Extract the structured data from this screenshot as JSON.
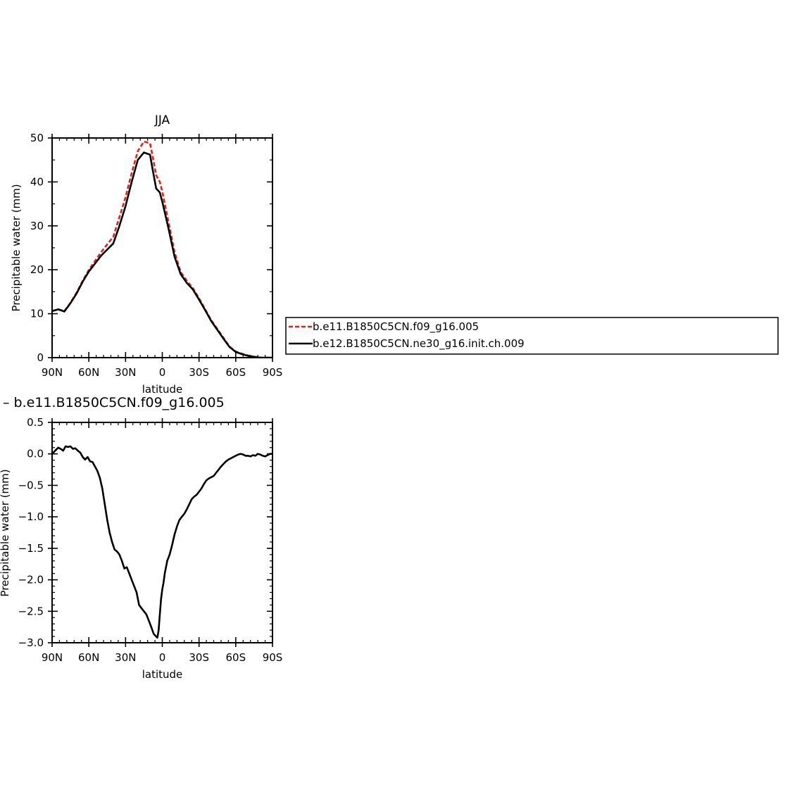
{
  "chart_data": [
    {
      "type": "line",
      "title": "JJA",
      "xlabel": "latitude",
      "ylabel": "Precipitable water (mm)",
      "xlim": [
        90,
        -90
      ],
      "ylim": [
        0,
        50
      ],
      "x_tick_labels": [
        "90N",
        "60N",
        "30N",
        "0",
        "30S",
        "60S",
        "90S"
      ],
      "x_tick_values": [
        90,
        60,
        30,
        0,
        -30,
        -60,
        -90
      ],
      "y_tick_labels": [
        "0",
        "10",
        "20",
        "30",
        "40",
        "50"
      ],
      "y_tick_values": [
        0,
        10,
        20,
        30,
        40,
        50
      ],
      "legend": "right",
      "series": [
        {
          "name": "b.e11.B1850C5CN.f09_g16.005",
          "color": "#e3201b",
          "dash": true,
          "x": [
            90,
            85,
            80,
            75,
            70,
            65,
            60,
            55,
            50,
            45,
            40,
            35,
            30,
            25,
            20,
            15,
            10,
            8,
            5,
            2,
            0,
            -5,
            -10,
            -15,
            -20,
            -25,
            -30,
            -35,
            -40,
            -45,
            -50,
            -55,
            -60,
            -65,
            -70,
            -75,
            -80,
            -85,
            -90
          ],
          "values": [
            10.6,
            11.0,
            10.6,
            12.5,
            14.8,
            17.5,
            20.0,
            22.0,
            24.0,
            25.8,
            27.5,
            32.0,
            36.5,
            42.0,
            47.0,
            49.2,
            48.8,
            46.0,
            41.5,
            40.0,
            37.8,
            31.0,
            24.0,
            19.5,
            17.5,
            15.8,
            13.5,
            11.0,
            8.5,
            6.5,
            4.5,
            2.5,
            1.4,
            0.9,
            0.5,
            0.2,
            0.0,
            0.0,
            0.0
          ]
        },
        {
          "name": "b.e12.B1850C5CN.ne30_g16.init.ch.009",
          "color": "#000000",
          "dash": false,
          "x": [
            90,
            85,
            80,
            75,
            70,
            65,
            60,
            55,
            50,
            45,
            40,
            35,
            30,
            25,
            20,
            15,
            10,
            8,
            5,
            2,
            0,
            -5,
            -10,
            -15,
            -20,
            -25,
            -30,
            -35,
            -40,
            -45,
            -50,
            -55,
            -60,
            -65,
            -70,
            -75,
            -80,
            -85,
            -90
          ],
          "values": [
            10.6,
            11.0,
            10.5,
            12.4,
            14.6,
            17.3,
            19.6,
            21.4,
            23.2,
            24.6,
            26.0,
            30.0,
            34.5,
            40.0,
            45.0,
            46.7,
            46.2,
            43.0,
            38.5,
            37.6,
            35.5,
            29.5,
            23.0,
            19.0,
            17.0,
            15.5,
            13.2,
            10.8,
            8.3,
            6.3,
            4.3,
            2.4,
            1.3,
            0.8,
            0.4,
            0.2,
            0.0,
            0.0,
            0.0
          ]
        }
      ]
    },
    {
      "type": "line",
      "title": "b.e11.B1850C5CN.f09_g16.005",
      "xlabel": "latitude",
      "ylabel": "Precipitable water (mm)",
      "xlim": [
        90,
        -90
      ],
      "ylim": [
        -3.0,
        0.5
      ],
      "x_tick_labels": [
        "90N",
        "60N",
        "30N",
        "0",
        "30S",
        "60S",
        "90S"
      ],
      "x_tick_values": [
        90,
        60,
        30,
        0,
        -30,
        -60,
        -90
      ],
      "y_tick_labels": [
        "0.5",
        "0.0",
        "−0.5",
        "−1.0",
        "−1.5",
        "−2.0",
        "−2.5",
        "−3.0"
      ],
      "y_tick_values": [
        0.5,
        0.0,
        -0.5,
        -1.0,
        -1.5,
        -2.0,
        -2.5,
        -3.0
      ],
      "series": [
        {
          "color": "#000000",
          "dash": false,
          "x": [
            90,
            87,
            85,
            83,
            81,
            79,
            77,
            75,
            73,
            71,
            69,
            67,
            65,
            63,
            61,
            59,
            57,
            55,
            53,
            51,
            49,
            47,
            45,
            43,
            41,
            39,
            37,
            35,
            33,
            31,
            29,
            27,
            25,
            23,
            21,
            19,
            17,
            15,
            13,
            11,
            9,
            7,
            5,
            4,
            3,
            2,
            1,
            0,
            -1,
            -2,
            -4,
            -6,
            -8,
            -10,
            -12,
            -14,
            -16,
            -18,
            -20,
            -22,
            -24,
            -26,
            -28,
            -30,
            -32,
            -34,
            -36,
            -38,
            -40,
            -42,
            -44,
            -46,
            -48,
            -50,
            -52,
            -54,
            -56,
            -58,
            -60,
            -62,
            -64,
            -66,
            -68,
            -70,
            -72,
            -74,
            -76,
            -78,
            -80,
            -82,
            -84,
            -86,
            -88,
            -90
          ],
          "values": [
            0.0,
            0.06,
            0.1,
            0.08,
            0.05,
            0.12,
            0.11,
            0.12,
            0.08,
            0.09,
            0.05,
            0.02,
            -0.05,
            -0.09,
            -0.05,
            -0.12,
            -0.13,
            -0.2,
            -0.27,
            -0.38,
            -0.55,
            -0.8,
            -1.05,
            -1.25,
            -1.4,
            -1.52,
            -1.55,
            -1.6,
            -1.7,
            -1.82,
            -1.8,
            -1.9,
            -2.0,
            -2.1,
            -2.2,
            -2.4,
            -2.45,
            -2.5,
            -2.55,
            -2.65,
            -2.75,
            -2.86,
            -2.9,
            -2.92,
            -2.8,
            -2.55,
            -2.3,
            -2.15,
            -2.05,
            -1.9,
            -1.7,
            -1.6,
            -1.45,
            -1.28,
            -1.15,
            -1.05,
            -1.0,
            -0.95,
            -0.88,
            -0.8,
            -0.72,
            -0.68,
            -0.65,
            -0.6,
            -0.55,
            -0.48,
            -0.42,
            -0.39,
            -0.37,
            -0.35,
            -0.3,
            -0.25,
            -0.2,
            -0.16,
            -0.12,
            -0.09,
            -0.07,
            -0.05,
            -0.03,
            -0.01,
            0.0,
            -0.01,
            -0.03,
            -0.03,
            -0.04,
            -0.02,
            -0.03,
            0.0,
            -0.01,
            -0.03,
            -0.04,
            -0.02,
            0.0,
            0.0
          ]
        }
      ]
    }
  ]
}
